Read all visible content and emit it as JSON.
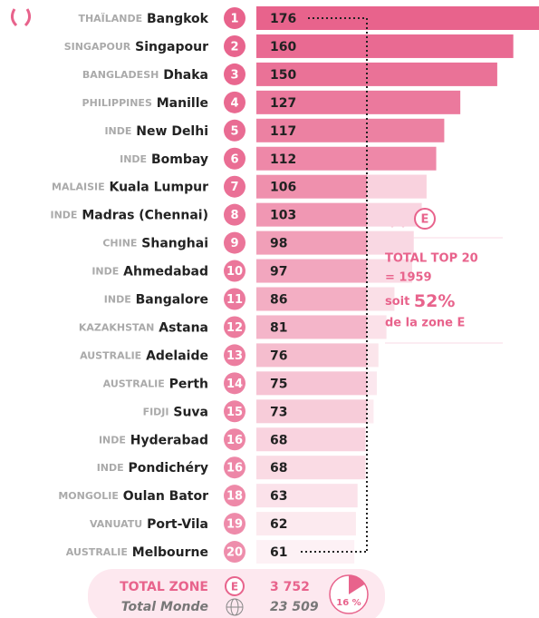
{
  "chart_data": {
    "type": "bar",
    "countries": [
      "THAÏLANDE",
      "SINGAPOUR",
      "BANGLADESH",
      "PHILIPPINES",
      "INDE",
      "INDE",
      "MALAISIE",
      "INDE",
      "CHINE",
      "INDE",
      "INDE",
      "KAZAKHSTAN",
      "AUSTRALIE",
      "AUSTRALIE",
      "FIDJI",
      "INDE",
      "INDE",
      "MONGOLIE",
      "VANUATU",
      "AUSTRALIE"
    ],
    "categories": [
      "Bangkok",
      "Singapour",
      "Dhaka",
      "Manille",
      "New Delhi",
      "Bombay",
      "Kuala Lumpur",
      "Madras (Chennai)",
      "Shanghai",
      "Ahmedabad",
      "Bangalore",
      "Astana",
      "Adelaide",
      "Perth",
      "Suva",
      "Hyderabad",
      "Pondichéry",
      "Oulan Bator",
      "Port-Vila",
      "Melbourne"
    ],
    "ranks": [
      1,
      2,
      3,
      4,
      5,
      6,
      7,
      8,
      9,
      10,
      11,
      12,
      13,
      14,
      15,
      16,
      16,
      18,
      19,
      20
    ],
    "values": [
      176,
      160,
      150,
      127,
      117,
      112,
      106,
      103,
      98,
      97,
      86,
      81,
      76,
      75,
      73,
      68,
      68,
      63,
      62,
      61
    ],
    "xlim": [
      0,
      176
    ],
    "color": "#e8638c",
    "color_end": "#fdf1f5",
    "zone_letter": "E",
    "panel": {
      "line1": "TOTAL TOP 20",
      "line2": "= 1959",
      "soit": "soit",
      "share": "52%",
      "line4": "de la zone E"
    },
    "total_zone_label": "TOTAL ZONE",
    "total_zone": {
      "value": 3752,
      "label": "3 752"
    },
    "world_label": "Total Monde",
    "world_total": {
      "value": 23509,
      "label": "23 509"
    },
    "world_share": 16,
    "world_share_label": "16 %"
  }
}
